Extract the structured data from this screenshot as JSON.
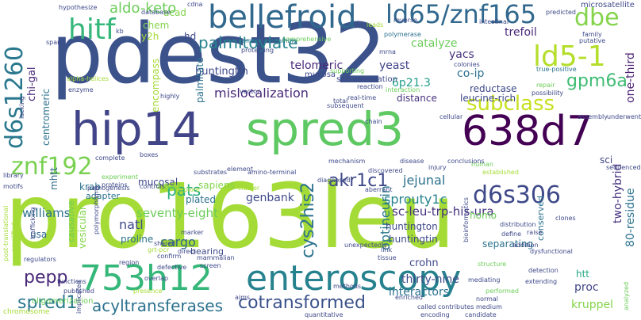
{
  "background": "#ffffff",
  "words": [
    {
      "text": "pro163leu",
      "color": "#a5db36"
    },
    {
      "text": "pdest32",
      "color": "#3b528b"
    },
    {
      "text": "hip14",
      "color": "#414487"
    },
    {
      "text": "spred3",
      "color": "#5ec962"
    },
    {
      "text": "638d7",
      "color": "#440154"
    },
    {
      "text": "bellefroid",
      "color": "#31688e"
    },
    {
      "text": "ld65/znf165",
      "color": "#31688e"
    },
    {
      "text": "enteroscopy",
      "color": "#26828e"
    },
    {
      "text": "753h12",
      "color": "#35b779"
    },
    {
      "text": "d6s1260",
      "color": "#2a788e"
    },
    {
      "text": "ld5-1",
      "color": "#b5de2b"
    },
    {
      "text": "hitf",
      "color": "#35b779"
    },
    {
      "text": "znf192",
      "color": "#7ad151"
    },
    {
      "text": "d6s306",
      "color": "#3e4989"
    },
    {
      "text": "subclass",
      "color": "#c8e020"
    },
    {
      "text": "dbe",
      "color": "#84d44b"
    },
    {
      "text": "gpm6a",
      "color": "#3fbc73"
    },
    {
      "text": "cys2his2",
      "color": "#2c728e"
    },
    {
      "text": "akr1c1",
      "color": "#3e4989"
    },
    {
      "text": "cotransformed",
      "color": "#3b528b"
    },
    {
      "text": "spred1",
      "color": "#2a788e"
    },
    {
      "text": "acyltransferases",
      "color": "#2c728e"
    },
    {
      "text": "pepp",
      "color": "#482878"
    },
    {
      "text": "palmitoylate",
      "color": "#26828e"
    },
    {
      "text": "aldo-keto",
      "color": "#6ccd5a"
    },
    {
      "text": "pats",
      "color": "#29af7f"
    },
    {
      "text": "mislocalization",
      "color": "#482878"
    },
    {
      "text": "optineurin",
      "color": "#2a788e"
    },
    {
      "text": "sprouty1c",
      "color": "#26828e"
    },
    {
      "text": "sc-leu-trp-his-ura",
      "color": "#46327e"
    },
    {
      "text": "huntingtin",
      "color": "#3e4989"
    },
    {
      "text": "telomeric",
      "color": "#482878"
    },
    {
      "text": "jejunal",
      "color": "#2c728e"
    },
    {
      "text": "seventy-eight",
      "color": "#6ccd5a"
    },
    {
      "text": "williams",
      "color": "#2c728e"
    },
    {
      "text": "natl",
      "color": "#3e4989"
    },
    {
      "text": "cargo",
      "color": "#31688e"
    },
    {
      "text": "genbank",
      "color": "#3e4989"
    },
    {
      "text": "thirty-nine",
      "color": "#3e4989"
    },
    {
      "text": "interactors",
      "color": "#2c728e"
    },
    {
      "text": "kruppel",
      "color": "#84d44b"
    },
    {
      "text": "proc",
      "color": "#414487"
    },
    {
      "text": "htt",
      "color": "#22a884"
    },
    {
      "text": "two-hybrid",
      "color": "#46327e"
    },
    {
      "text": "80-residue",
      "color": "#2c728e"
    },
    {
      "text": "one-third",
      "color": "#481f70"
    },
    {
      "text": "trefoil",
      "color": "#482878"
    },
    {
      "text": "catalyze",
      "color": "#6ccd5a"
    },
    {
      "text": "yacs",
      "color": "#46327e"
    },
    {
      "text": "co-ip",
      "color": "#2c728e"
    },
    {
      "text": "6p21.3",
      "color": "#1f9e89"
    },
    {
      "text": "yeast",
      "color": "#414487"
    },
    {
      "text": "sapiens",
      "color": "#84d44b"
    },
    {
      "text": "plated",
      "color": "#2c728e"
    },
    {
      "text": "homo",
      "color": "#6ccd5a"
    },
    {
      "text": "crohn",
      "color": "#3e4989"
    },
    {
      "text": "huntington",
      "color": "#3e4989"
    },
    {
      "text": "separating",
      "color": "#2c728e"
    },
    {
      "text": "reductase",
      "color": "#3e4989"
    },
    {
      "text": "distance",
      "color": "#46327e"
    },
    {
      "text": "leucine-rich",
      "color": "#3e4989"
    },
    {
      "text": "sci",
      "color": "#414487"
    },
    {
      "text": "krab",
      "color": "#2c728e"
    },
    {
      "text": "mucosal",
      "color": "#3e4989"
    },
    {
      "text": "huntingtin",
      "color": "#3e4989"
    },
    {
      "text": "chi-gal",
      "color": "#482878"
    },
    {
      "text": "centromeric",
      "color": "#2c728e"
    },
    {
      "text": "mhtt",
      "color": "#31688e"
    },
    {
      "text": "encompass",
      "color": "#a5db36"
    },
    {
      "text": "y2h",
      "color": "#a5db36"
    },
    {
      "text": "chem",
      "color": "#84d44b"
    },
    {
      "text": "acad",
      "color": "#84d44b"
    },
    {
      "text": "hd",
      "color": "#3e4989"
    },
    {
      "text": "palmitate",
      "color": "#2c728e"
    },
    {
      "text": "usa",
      "color": "#31688e"
    },
    {
      "text": "proline",
      "color": "#2c728e"
    },
    {
      "text": "vesicular",
      "color": "#84d44b"
    },
    {
      "text": "causative",
      "color": "#6ccd5a"
    },
    {
      "text": "adapter",
      "color": "#2c728e"
    },
    {
      "text": "4-fold",
      "color": "#84d44b"
    },
    {
      "text": "bearing",
      "color": "#3e4989"
    },
    {
      "text": "conserved",
      "color": "#2c728e"
    },
    {
      "text": "microsatellite",
      "color": "#3e4989"
    },
    {
      "text": "mucosa",
      "color": "#3e4989"
    },
    {
      "text": "self-association",
      "color": "#3e4989"
    },
    {
      "text": "oligomerization",
      "color": "#6ccd5a"
    },
    {
      "text": "chromosome",
      "color": "#a5db36"
    },
    {
      "text": "hypothesize",
      "color": "#3e4989"
    },
    {
      "text": "database",
      "color": "#3e4989"
    },
    {
      "text": "reverse",
      "color": "#3e4989"
    },
    {
      "text": "intestinal",
      "color": "#3e4989"
    },
    {
      "text": "predicted",
      "color": "#3e4989"
    },
    {
      "text": "domain-containing",
      "color": "#2c728e"
    },
    {
      "text": "comprehensive",
      "color": "#6ccd5a"
    },
    {
      "text": "polymerase",
      "color": "#2c728e"
    },
    {
      "text": "colonies",
      "color": "#3e4989"
    },
    {
      "text": "supporting",
      "color": "#6ccd5a"
    },
    {
      "text": "true-positive",
      "color": "#2c728e"
    },
    {
      "text": "possibility",
      "color": "#3e4989"
    },
    {
      "text": "real-time",
      "color": "#3e4989"
    },
    {
      "text": "interaction",
      "color": "#6ccd5a"
    },
    {
      "text": "subsequent",
      "color": "#3e4989"
    },
    {
      "text": "cellular",
      "color": "#3e4989"
    },
    {
      "text": "assembly",
      "color": "#3e4989"
    },
    {
      "text": "library",
      "color": "#3e4989"
    },
    {
      "text": "motifs",
      "color": "#3e4989"
    },
    {
      "text": "amplified",
      "color": "#a5db36"
    },
    {
      "text": "experiment",
      "color": "#6ccd5a"
    },
    {
      "text": "proteins",
      "color": "#3e4989"
    },
    {
      "text": "controls",
      "color": "#3e4989"
    },
    {
      "text": "element",
      "color": "#3e4989"
    },
    {
      "text": "amino-terminal",
      "color": "#3e4989"
    },
    {
      "text": "human",
      "color": "#6ccd5a"
    },
    {
      "text": "established",
      "color": "#a5db36"
    },
    {
      "text": "sequenced",
      "color": "#3e4989"
    },
    {
      "text": "dysfunctional",
      "color": "#3e4989"
    },
    {
      "text": "clones",
      "color": "#3e4989"
    },
    {
      "text": "detection",
      "color": "#3e4989"
    },
    {
      "text": "extending",
      "color": "#3e4989"
    },
    {
      "text": "analyzed",
      "color": "#6ccd5a"
    },
    {
      "text": "medium",
      "color": "#3e4989"
    },
    {
      "text": "candidate",
      "color": "#3e4989"
    },
    {
      "text": "encoding",
      "color": "#3e4989"
    },
    {
      "text": "post-translational",
      "color": "#a5db36"
    },
    {
      "text": "functions",
      "color": "#3e4989"
    },
    {
      "text": "published",
      "color": "#3e4989"
    },
    {
      "text": "implicated",
      "color": "#3e4989"
    },
    {
      "text": "mammalian",
      "color": "#3e4989"
    },
    {
      "text": "methods",
      "color": "#3e4989"
    },
    {
      "text": "tissue",
      "color": "#3e4989"
    },
    {
      "text": "unexpectedly",
      "color": "#3e4989"
    },
    {
      "text": "bioinformatics",
      "color": "#3e4989"
    },
    {
      "text": "structure",
      "color": "#6ccd5a"
    },
    {
      "text": "performed",
      "color": "#6ccd5a"
    },
    {
      "text": "enriched",
      "color": "#3e4989"
    },
    {
      "text": "direct",
      "color": "#3e4989"
    },
    {
      "text": "screen",
      "color": "#3e4989"
    },
    {
      "text": "confirm",
      "color": "#3e4989"
    },
    {
      "text": "defective",
      "color": "#3e4989"
    },
    {
      "text": "overlap",
      "color": "#3e4989"
    },
    {
      "text": "region",
      "color": "#3e4989"
    },
    {
      "text": "regulators",
      "color": "#3e4989"
    },
    {
      "text": "pathogenesis",
      "color": "#3e4989"
    },
    {
      "text": "polymorphisms",
      "color": "#3e4989"
    },
    {
      "text": "trafficking",
      "color": "#3e4989"
    },
    {
      "text": "lacking",
      "color": "#3e4989"
    },
    {
      "text": "enzyme",
      "color": "#3e4989"
    },
    {
      "text": "alpha-helices",
      "color": "#a5db36"
    },
    {
      "text": "span",
      "color": "#3e4989"
    },
    {
      "text": "kb",
      "color": "#3e4989"
    },
    {
      "text": "cdna",
      "color": "#3e4989"
    },
    {
      "text": "leads",
      "color": "#a5db36"
    },
    {
      "text": "mrna",
      "color": "#3e4989"
    },
    {
      "text": "reaction",
      "color": "#3e4989"
    },
    {
      "text": "protecting",
      "color": "#3e4989"
    },
    {
      "text": "family",
      "color": "#3e4989"
    },
    {
      "text": "putative",
      "color": "#3e4989"
    },
    {
      "text": "repair",
      "color": "#6ccd5a"
    },
    {
      "text": "vector",
      "color": "#3e4989"
    },
    {
      "text": "chain",
      "color": "#3e4989"
    },
    {
      "text": "disease",
      "color": "#3e4989"
    },
    {
      "text": "injury",
      "color": "#3e4989"
    },
    {
      "text": "conclusions",
      "color": "#3e4989"
    },
    {
      "text": "underwent",
      "color": "#3e4989"
    },
    {
      "text": "distribution",
      "color": "#3e4989"
    },
    {
      "text": "define",
      "color": "#3e4989"
    },
    {
      "text": "raise",
      "color": "#3e4989"
    },
    {
      "text": "addition",
      "color": "#3e4989"
    },
    {
      "text": "link",
      "color": "#3e4989"
    },
    {
      "text": "mediating",
      "color": "#3e4989"
    },
    {
      "text": "called",
      "color": "#3e4989"
    },
    {
      "text": "contributes",
      "color": "#3e4989"
    },
    {
      "text": "normal",
      "color": "#3e4989"
    },
    {
      "text": "aims",
      "color": "#3e4989"
    },
    {
      "text": "marker",
      "color": "#3e4989"
    },
    {
      "text": "boxes",
      "color": "#3e4989"
    },
    {
      "text": "complete",
      "color": "#3e4989"
    },
    {
      "text": "highly",
      "color": "#3e4989"
    },
    {
      "text": "diagnosed",
      "color": "#3e4989"
    },
    {
      "text": "mechanism",
      "color": "#3e4989"
    },
    {
      "text": "discovered",
      "color": "#3e4989"
    },
    {
      "text": "aberrant",
      "color": "#3e4989"
    },
    {
      "text": "substrates",
      "color": "#3e4989"
    },
    {
      "text": "explore",
      "color": "#a5db36"
    },
    {
      "text": "cluster",
      "color": "#a5db36"
    },
    {
      "text": "grt-pcr",
      "color": "#a5db36"
    },
    {
      "text": "presence",
      "color": "#a5db36"
    },
    {
      "text": "shared",
      "color": "#3e4989"
    },
    {
      "text": "total",
      "color": "#3e4989"
    },
    {
      "text": "quantitative",
      "color": "#3e4989"
    }
  ]
}
